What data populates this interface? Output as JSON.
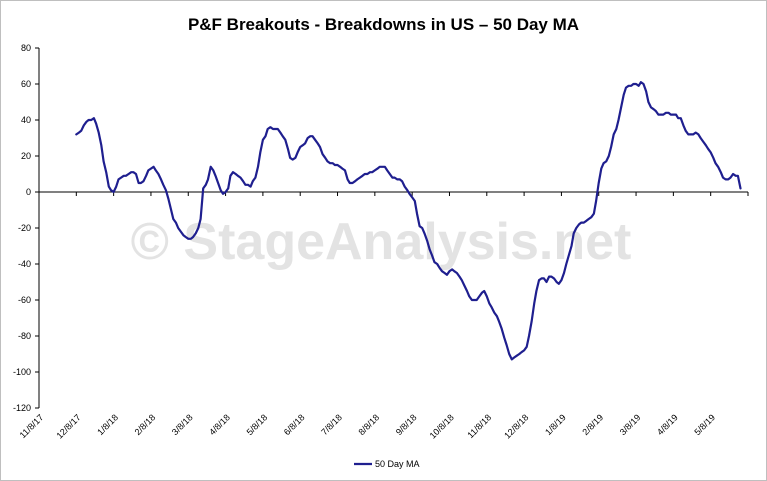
{
  "chart_data": {
    "type": "line",
    "title": "P&F Breakouts - Breakdowns in US – 50 Day MA",
    "watermark": "© StageAnalysis.net",
    "xlabel": "",
    "ylabel": "",
    "ylim": [
      -120,
      80
    ],
    "yticks": [
      "80",
      "60",
      "40",
      "20",
      "0",
      "-20",
      "-40",
      "-60",
      "-80",
      "-100",
      "-120"
    ],
    "xlim": [
      0,
      190
    ],
    "x_tick_labels": [
      "11/8/17",
      "12/8/17",
      "1/8/18",
      "2/8/18",
      "3/8/18",
      "4/8/18",
      "5/8/18",
      "6/8/18",
      "7/8/18",
      "8/8/18",
      "9/8/18",
      "10/8/18",
      "11/8/18",
      "12/8/18",
      "1/8/19",
      "2/8/19",
      "3/8/19",
      "4/8/19",
      "5/8/19"
    ],
    "legend": {
      "position": "bottom-center",
      "label": "50 Day MA"
    },
    "colors": {
      "series": "#1f1f8f",
      "axis": "#000000",
      "frame": "#bfbfbf"
    },
    "series": [
      {
        "name": "50 Day MA",
        "x": [
          10.0,
          10.7,
          11.3,
          12.0,
          12.7,
          13.3,
          14.0,
          14.7,
          15.3,
          16.0,
          16.7,
          17.3,
          18.0,
          18.7,
          19.3,
          20.0,
          20.7,
          21.3,
          22.0,
          22.7,
          23.3,
          24.0,
          24.7,
          25.3,
          26.0,
          26.7,
          27.3,
          28.0,
          28.7,
          29.3,
          30.0,
          30.7,
          31.3,
          32.0,
          32.7,
          33.3,
          34.0,
          34.7,
          35.3,
          36.0,
          36.7,
          37.3,
          38.0,
          38.7,
          39.3,
          40.0,
          40.7,
          41.3,
          42.0,
          42.7,
          43.3,
          44.0,
          44.7,
          45.3,
          46.0,
          46.7,
          47.3,
          48.0,
          48.7,
          49.3,
          50.0,
          50.7,
          51.3,
          52.0,
          52.7,
          53.3,
          54.0,
          54.7,
          55.3,
          56.0,
          56.7,
          57.3,
          58.0,
          58.7,
          59.3,
          60.0,
          60.7,
          61.3,
          62.0,
          62.7,
          63.3,
          64.0,
          64.7,
          65.3,
          66.0,
          66.7,
          67.3,
          68.0,
          68.7,
          69.3,
          70.0,
          70.7,
          71.3,
          72.0,
          72.7,
          73.3,
          74.0,
          74.7,
          75.3,
          76.0,
          76.7,
          77.3,
          78.0,
          78.7,
          79.3,
          80.0,
          80.7,
          81.3,
          82.0,
          82.7,
          83.3,
          84.0,
          84.7,
          85.3,
          86.0,
          86.7,
          87.3,
          88.0,
          88.7,
          89.3,
          90.0,
          90.7,
          91.3,
          92.0,
          92.7,
          93.3,
          94.0,
          94.7,
          95.3,
          96.0,
          96.7,
          97.3,
          98.0,
          98.7,
          99.3,
          100.0,
          100.7,
          101.3,
          102.0,
          102.7,
          103.3,
          104.0,
          104.7,
          105.3,
          106.0,
          106.7,
          107.3,
          108.0,
          108.7,
          109.3,
          110.0,
          110.7,
          111.3,
          112.0,
          112.7,
          113.3,
          114.0,
          114.7,
          115.3,
          116.0,
          116.7,
          117.3,
          118.0,
          118.7,
          119.3,
          120.0,
          120.7,
          121.3,
          122.0,
          122.7,
          123.3,
          124.0,
          124.7,
          125.3,
          126.0,
          126.7,
          127.3,
          128.0,
          128.7,
          129.3,
          130.0,
          130.7,
          131.3,
          132.0,
          132.7,
          133.3,
          134.0,
          134.7,
          135.3,
          136.0,
          136.7,
          137.3,
          138.0,
          138.7,
          139.3,
          140.0,
          140.7,
          141.3,
          142.0,
          142.7,
          143.3,
          144.0,
          144.7,
          145.3,
          146.0,
          146.7,
          147.3,
          148.0,
          148.7,
          149.3,
          150.0,
          150.7,
          151.3,
          152.0,
          152.7,
          153.3,
          154.0,
          154.7,
          155.3,
          156.0,
          156.7,
          157.3,
          158.0,
          158.7,
          159.3,
          160.0,
          160.7,
          161.3,
          162.0,
          162.7,
          163.3,
          164.0,
          164.7,
          165.3,
          166.0,
          166.7,
          167.3,
          168.0,
          168.7,
          169.3,
          170.0,
          170.7,
          171.3,
          172.0,
          172.7,
          173.3,
          174.0,
          174.7,
          175.3,
          176.0,
          176.7,
          177.3,
          178.0,
          178.7,
          179.3,
          180.0,
          180.7,
          181.3,
          182.0,
          182.7,
          183.3,
          184.0,
          184.7,
          185.3,
          186.0,
          186.7,
          187.3,
          188.0
        ],
        "values": [
          32,
          33,
          34,
          37,
          39,
          40,
          40,
          41,
          38,
          33,
          26,
          17,
          11,
          3,
          1,
          0,
          3,
          7,
          8,
          9,
          9,
          10,
          11,
          11,
          10,
          5,
          5,
          6,
          9,
          12,
          13,
          14,
          12,
          10,
          7,
          4,
          1,
          -4,
          -9,
          -15,
          -17,
          -20,
          -22,
          -24,
          -25,
          -26,
          -26,
          -25,
          -23,
          -20,
          -15,
          2,
          4,
          7,
          14,
          12,
          9,
          5,
          1,
          -1,
          0,
          2,
          9,
          11,
          10,
          9,
          8,
          6,
          4,
          4,
          3,
          6,
          8,
          14,
          22,
          29,
          31,
          35,
          36,
          35,
          35,
          35,
          33,
          31,
          29,
          24,
          19,
          18,
          19,
          22,
          25,
          26,
          27,
          30,
          31,
          31,
          29,
          27,
          25,
          21,
          19,
          17,
          16,
          16,
          15,
          15,
          14,
          13,
          12,
          7,
          5,
          5,
          6,
          7,
          8,
          9,
          10,
          10,
          11,
          11,
          12,
          13,
          14,
          14,
          14,
          12,
          10,
          8,
          8,
          7,
          7,
          6,
          3,
          1,
          -1,
          -3,
          -5,
          -12,
          -19,
          -20,
          -23,
          -27,
          -32,
          -35,
          -39,
          -40,
          -42,
          -44,
          -45,
          -46,
          -44,
          -43,
          -44,
          -45,
          -47,
          -49,
          -52,
          -55,
          -58,
          -60,
          -60,
          -60,
          -58,
          -56,
          -55,
          -58,
          -62,
          -64,
          -67,
          -69,
          -72,
          -76,
          -81,
          -85,
          -90,
          -93,
          -92,
          -91,
          -90,
          -89,
          -88,
          -86,
          -80,
          -72,
          -62,
          -55,
          -49,
          -48,
          -48,
          -50,
          -47,
          -47,
          -48,
          -50,
          -51,
          -49,
          -45,
          -40,
          -35,
          -30,
          -23,
          -20,
          -18,
          -17,
          -17,
          -16,
          -15,
          -14,
          -12,
          -5,
          5,
          13,
          16,
          17,
          20,
          25,
          32,
          35,
          40,
          47,
          54,
          58,
          59,
          59,
          60,
          60,
          59,
          61,
          60,
          56,
          50,
          47,
          46,
          45,
          43,
          43,
          43,
          44,
          44,
          43,
          43,
          43,
          41,
          41,
          37,
          34,
          32,
          32,
          32,
          33,
          32,
          30,
          28,
          26,
          24,
          22,
          19,
          16,
          14,
          11,
          8,
          7,
          7,
          8,
          10,
          9,
          9,
          2
        ]
      }
    ]
  }
}
